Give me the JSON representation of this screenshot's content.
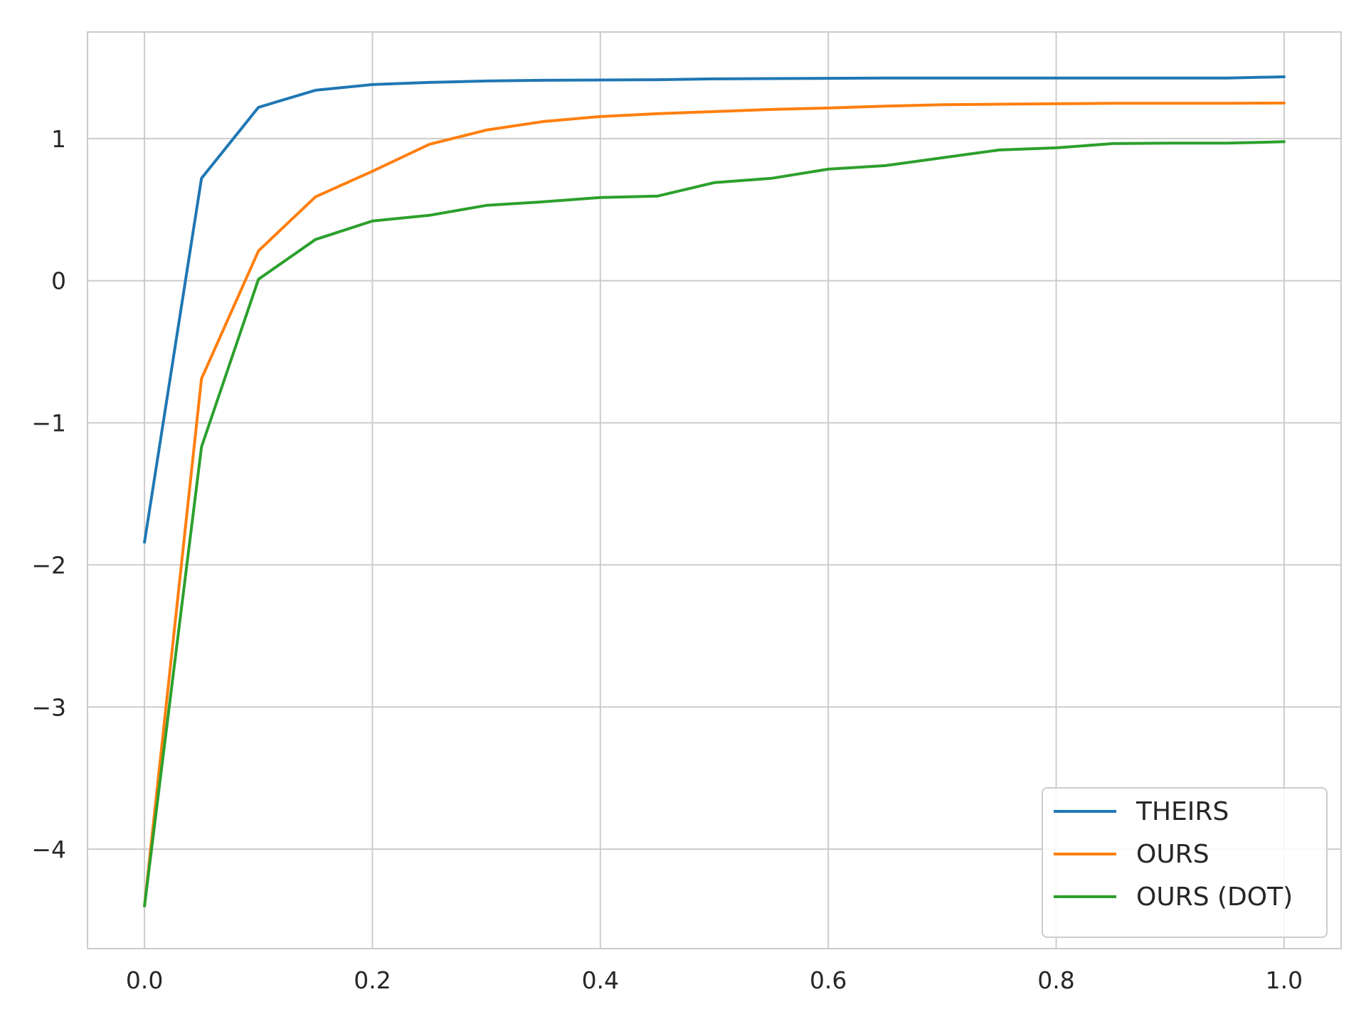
{
  "chart_data": {
    "type": "line",
    "title": "",
    "xlabel": "",
    "ylabel": "",
    "xlim": [
      -0.05,
      1.05
    ],
    "ylim": [
      -4.7,
      1.75
    ],
    "grid": true,
    "legend_position": "bottom-right",
    "x_ticks": [
      0.0,
      0.2,
      0.4,
      0.6,
      0.8,
      1.0
    ],
    "x_tick_labels": [
      "0.0",
      "0.2",
      "0.4",
      "0.6",
      "0.8",
      "1.0"
    ],
    "y_ticks": [
      -4,
      -3,
      -2,
      -1,
      0,
      1
    ],
    "y_tick_labels": [
      "−4",
      "−3",
      "−2",
      "−1",
      "0",
      "1"
    ],
    "x": [
      0.0,
      0.05,
      0.1,
      0.15,
      0.2,
      0.25,
      0.3,
      0.35,
      0.4,
      0.45,
      0.5,
      0.55,
      0.6,
      0.65,
      0.7,
      0.75,
      0.8,
      0.85,
      0.9,
      0.95,
      1.0
    ],
    "series": [
      {
        "name": "THEIRS",
        "color": "#1f77b4",
        "values": [
          -1.84,
          0.72,
          1.22,
          1.34,
          1.38,
          1.395,
          1.405,
          1.41,
          1.412,
          1.414,
          1.42,
          1.422,
          1.424,
          1.426,
          1.426,
          1.426,
          1.426,
          1.426,
          1.426,
          1.426,
          1.435
        ]
      },
      {
        "name": "OURS",
        "color": "#ff7f0e",
        "values": [
          -4.4,
          -0.69,
          0.21,
          0.59,
          0.77,
          0.96,
          1.06,
          1.12,
          1.155,
          1.175,
          1.19,
          1.205,
          1.215,
          1.228,
          1.238,
          1.242,
          1.245,
          1.248,
          1.248,
          1.248,
          1.25
        ]
      },
      {
        "name": "OURS (DOT)",
        "color": "#2ca02c",
        "values": [
          -4.4,
          -1.17,
          0.01,
          0.29,
          0.42,
          0.46,
          0.53,
          0.555,
          0.585,
          0.595,
          0.69,
          0.72,
          0.785,
          0.81,
          0.865,
          0.92,
          0.935,
          0.965,
          0.968,
          0.968,
          0.978
        ]
      }
    ]
  },
  "colors": {
    "background": "#ffffff",
    "grid": "#cccccc",
    "spine": "#cccccc",
    "text": "#262626"
  }
}
